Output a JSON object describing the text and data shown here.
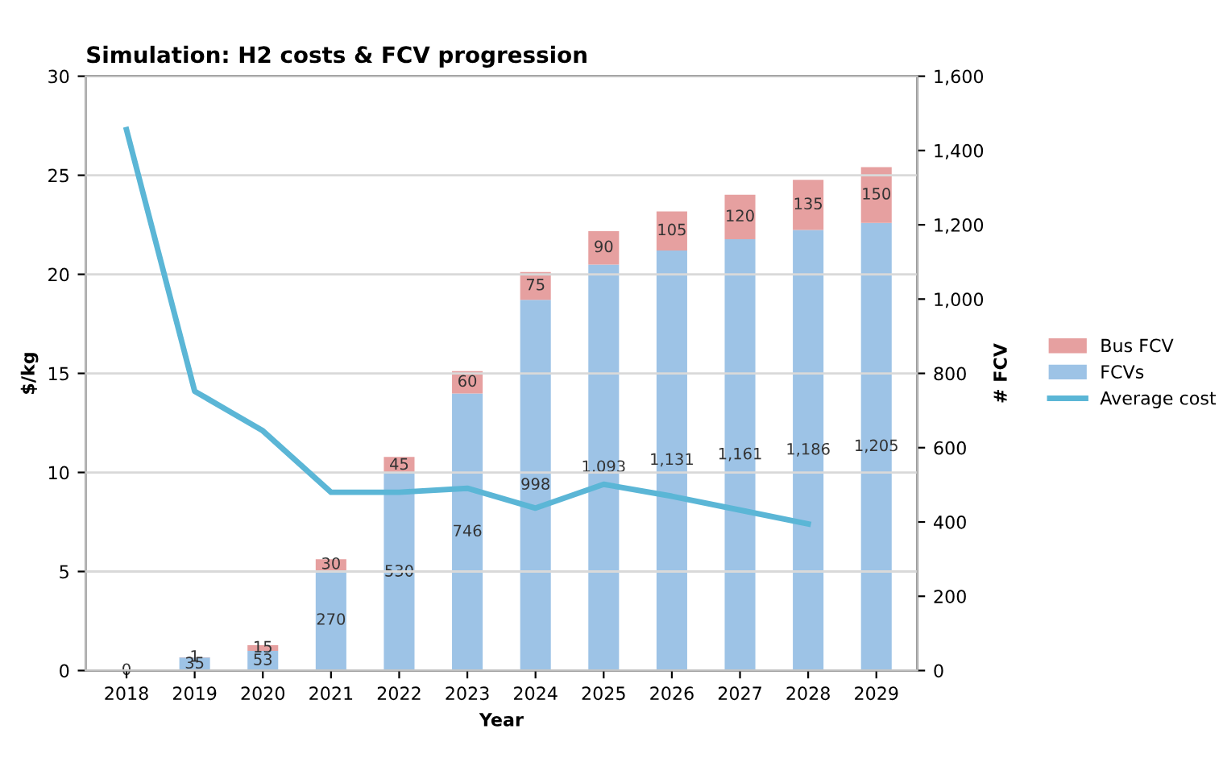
{
  "chart_data": {
    "type": "bar",
    "title": "Simulation: H2 costs & FCV progression",
    "xlabel": "Year",
    "ylabel": "$/kg",
    "y2label": "# FCV",
    "categories": [
      "2018",
      "2019",
      "2020",
      "2021",
      "2022",
      "2023",
      "2024",
      "2025",
      "2026",
      "2027",
      "2028",
      "2029"
    ],
    "stacked": true,
    "series": [
      {
        "name": "FCVs",
        "axis": "y2",
        "color": "#9dc3e6",
        "values": [
          0,
          35,
          53,
          270,
          530,
          746,
          998,
          1093,
          1131,
          1161,
          1186,
          1205
        ],
        "value_labels": [
          "0",
          "35",
          "53",
          "270",
          "530",
          "746",
          "998",
          "1,093",
          "1,131",
          "1,161",
          "1,186",
          "1,205"
        ]
      },
      {
        "name": "Bus FCV",
        "axis": "y2",
        "color": "#e6a0a0",
        "values": [
          0,
          1,
          15,
          30,
          45,
          60,
          75,
          90,
          105,
          120,
          135,
          150
        ],
        "value_labels": [
          null,
          "1",
          "15",
          "30",
          "45",
          "60",
          "75",
          "90",
          "105",
          "120",
          "135",
          "150"
        ]
      },
      {
        "name": "Average cost",
        "type": "line",
        "color": "#5bb6d6",
        "values": [
          27.3,
          14.1,
          12.1,
          9.0,
          9.0,
          9.2,
          8.2,
          9.4,
          8.8,
          8.1,
          7.4,
          null
        ]
      }
    ],
    "ylim": [
      0,
      30
    ],
    "yticks": [
      0,
      5,
      10,
      15,
      20,
      25,
      30
    ],
    "y2lim": [
      0,
      1600
    ],
    "y2ticks": [
      0,
      {
        "value": 200,
        "label": "200"
      },
      {
        "value": 400,
        "label": "400"
      },
      {
        "value": 600,
        "label": "600"
      },
      {
        "value": 800,
        "label": "800"
      },
      {
        "value": 1000,
        "label": "1,000"
      },
      {
        "value": 1200,
        "label": "1,200"
      },
      {
        "value": 1400,
        "label": "1,400"
      },
      {
        "value": 1600,
        "label": "1,600"
      }
    ],
    "grid": "y",
    "legend": "right"
  }
}
